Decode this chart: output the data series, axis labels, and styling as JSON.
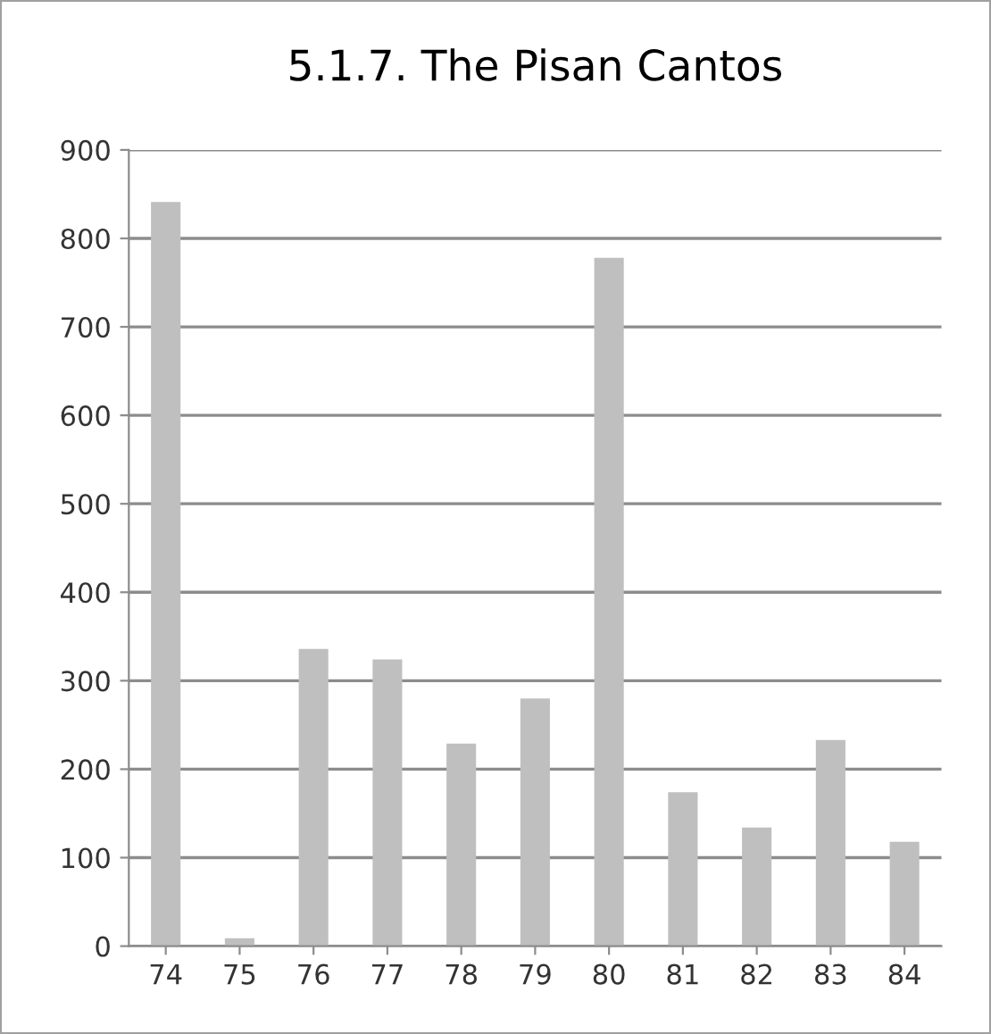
{
  "chart_data": {
    "type": "bar",
    "title": "5.1.7. The Pisan Cantos",
    "categories": [
      "74",
      "75",
      "76",
      "77",
      "78",
      "79",
      "80",
      "81",
      "82",
      "83",
      "84"
    ],
    "values": [
      841,
      9,
      336,
      324,
      229,
      280,
      778,
      174,
      134,
      233,
      118
    ],
    "color": "#bfbfbf",
    "ylim": [
      0,
      900
    ],
    "yticks": [
      0,
      100,
      200,
      300,
      400,
      500,
      600,
      700,
      800,
      900
    ],
    "grid": "y",
    "legend": false
  }
}
